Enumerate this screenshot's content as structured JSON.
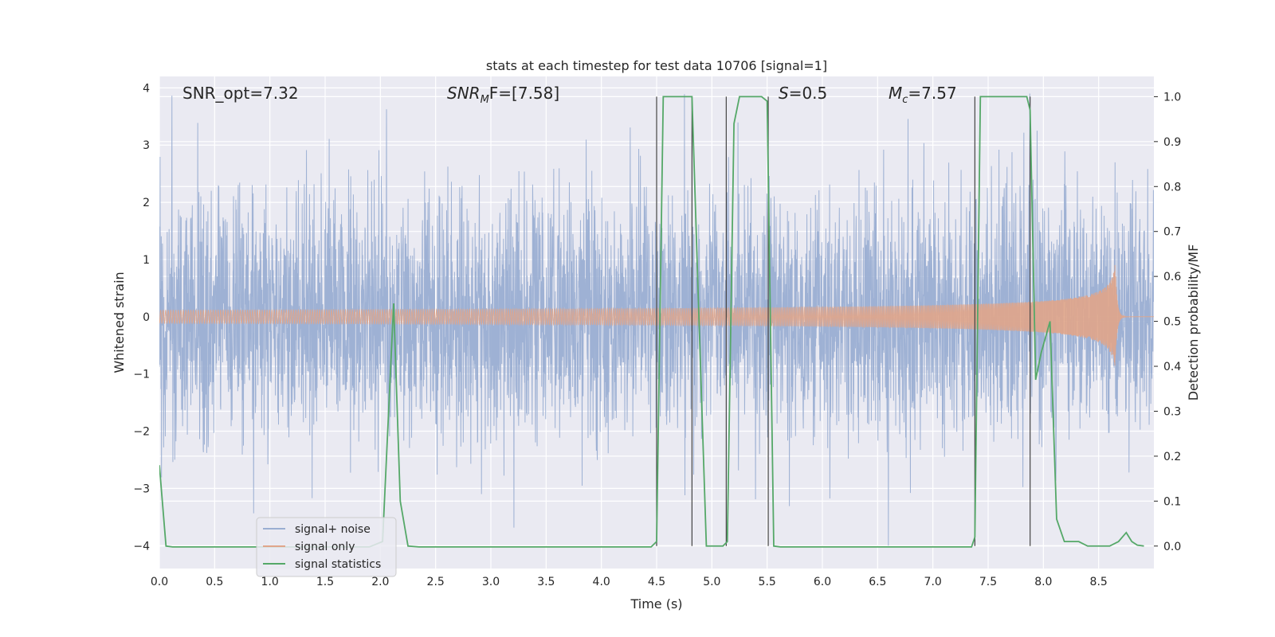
{
  "chart_data": {
    "type": "line",
    "title": "stats at each timestep for test data 10706 [signal=1]",
    "xlabel": "Time (s)",
    "ylabel_left": "Whitened strain",
    "ylabel_right": "Detection probability/MF",
    "xlim": [
      0,
      9
    ],
    "ylim_left": [
      -4.4,
      4.2
    ],
    "ylim_right": [
      -0.05,
      1.045
    ],
    "x_ticks": [
      "0.0",
      "0.5",
      "1.0",
      "1.5",
      "2.0",
      "2.5",
      "3.0",
      "3.5",
      "4.0",
      "4.5",
      "5.0",
      "5.5",
      "6.0",
      "6.5",
      "7.0",
      "7.5",
      "8.0",
      "8.5"
    ],
    "y_ticks_left": [
      "4",
      "3",
      "2",
      "1",
      "0",
      "−1",
      "−2",
      "−3",
      "−4"
    ],
    "y_ticks_right": [
      "1.0",
      "0.9",
      "0.8",
      "0.7",
      "0.6",
      "0.5",
      "0.4",
      "0.3",
      "0.2",
      "0.1",
      "0.0"
    ],
    "grid": true,
    "legend_placement": "lower-left",
    "annotations": {
      "snr_opt": "SNR_opt=7.32",
      "snr_mf_main": "SNR",
      "snr_mf_sub": "M",
      "snr_mf_rest": "F=[7.58]",
      "s_main": "S",
      "s_rest": "=0.5",
      "mc_main": "M",
      "mc_sub": "c",
      "mc_rest": "=7.57"
    },
    "series": [
      {
        "name": "signal+ noise",
        "color": "#9aaed2",
        "kind": "noise",
        "std": 1.05,
        "x_range": [
          0,
          9
        ]
      },
      {
        "name": "signal only",
        "color": "#e0a58a",
        "kind": "chirp",
        "merger_time": 8.65,
        "amplitude_at_merger": 0.95,
        "x_range": [
          0,
          9
        ]
      },
      {
        "name": "signal statistics",
        "color": "#55a868",
        "kind": "line",
        "x": [
          0.0,
          0.06,
          0.12,
          0.5,
          1.0,
          1.5,
          1.9,
          2.02,
          2.12,
          2.18,
          2.25,
          2.35,
          3.0,
          3.5,
          4.0,
          4.45,
          4.5,
          4.56,
          4.62,
          4.82,
          4.88,
          4.95,
          5.0,
          5.1,
          5.14,
          5.2,
          5.25,
          5.3,
          5.45,
          5.5,
          5.56,
          5.62,
          6.0,
          6.5,
          7.0,
          7.35,
          7.38,
          7.43,
          7.5,
          7.85,
          7.88,
          7.93,
          7.98,
          8.06,
          8.12,
          8.19,
          8.25,
          8.32,
          8.4,
          8.5,
          8.6,
          8.68,
          8.75,
          8.8,
          8.85,
          8.91
        ],
        "y": [
          0.18,
          0.0,
          -0.002,
          -0.002,
          -0.002,
          -0.002,
          -0.002,
          0.01,
          0.54,
          0.1,
          0.0,
          -0.002,
          -0.002,
          -0.002,
          -0.002,
          -0.002,
          0.01,
          1.0,
          1.0,
          1.0,
          0.53,
          0.0,
          0.0,
          0.0,
          0.01,
          0.94,
          1.0,
          1.0,
          1.0,
          0.99,
          0.0,
          -0.002,
          -0.002,
          -0.002,
          -0.002,
          -0.002,
          0.02,
          1.0,
          1.0,
          1.0,
          0.97,
          0.37,
          0.43,
          0.5,
          0.06,
          0.01,
          0.01,
          0.01,
          0.0,
          0.0,
          0.0,
          0.01,
          0.03,
          0.01,
          0.002,
          0.0
        ]
      }
    ],
    "vertical_markers": [
      4.5,
      4.82,
      5.13,
      5.51,
      7.38,
      7.88
    ]
  }
}
